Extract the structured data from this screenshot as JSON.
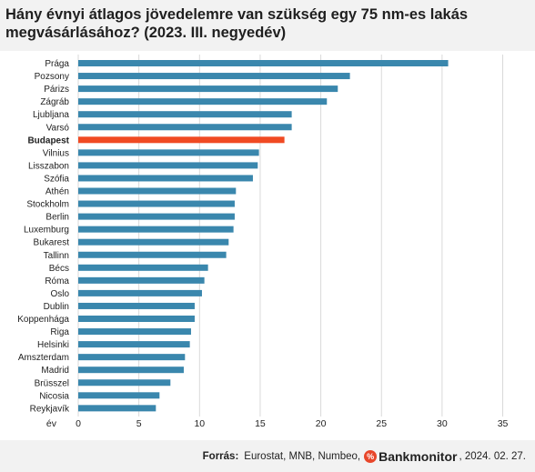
{
  "chart_data": {
    "type": "bar",
    "orientation": "horizontal",
    "title": "Hány évnyi átlagos jövedelemre van szükség egy 75 nm-es lakás megvásárlásához? (2023. III. negyedév)",
    "xlabel": "év",
    "xlim": [
      0,
      35
    ],
    "xticks": [
      0,
      5,
      10,
      15,
      20,
      25,
      30,
      35
    ],
    "grid": "vertical",
    "bar_color": "#3a87ad",
    "highlight_color": "#f04a23",
    "highlight": "Budapest",
    "categories": [
      "Prága",
      "Pozsony",
      "Párizs",
      "Zágráb",
      "Ljubljana",
      "Varsó",
      "Budapest",
      "Vilnius",
      "Lisszabon",
      "Szófia",
      "Athén",
      "Stockholm",
      "Berlin",
      "Luxemburg",
      "Bukarest",
      "Tallinn",
      "Bécs",
      "Róma",
      "Oslo",
      "Dublin",
      "Koppenhága",
      "Riga",
      "Helsinki",
      "Amszterdam",
      "Madrid",
      "Brüsszel",
      "Nicosia",
      "Reykjavík"
    ],
    "values": [
      30.5,
      22.4,
      21.4,
      20.5,
      17.6,
      17.6,
      17.0,
      14.9,
      14.8,
      14.4,
      13.0,
      12.9,
      12.9,
      12.8,
      12.4,
      12.2,
      10.7,
      10.4,
      10.2,
      9.6,
      9.6,
      9.3,
      9.2,
      8.8,
      8.7,
      7.6,
      6.7,
      6.4
    ]
  },
  "source": {
    "label": "Forrás:",
    "text": "Eurostat, MNB, Numbeo,",
    "brand_icon": "%",
    "brand": "Bankmonitor",
    "date": ", 2024. 02. 27."
  }
}
